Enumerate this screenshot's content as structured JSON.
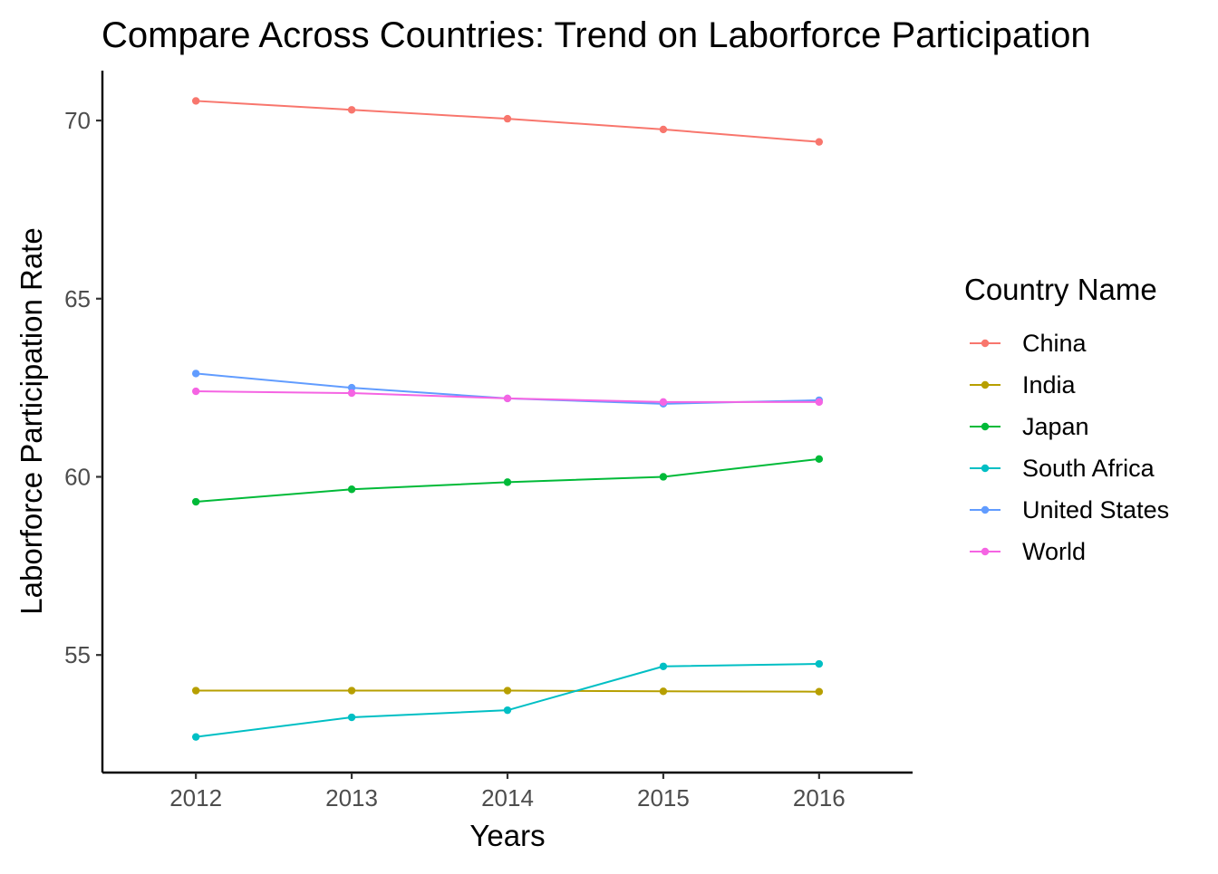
{
  "chart_data": {
    "type": "line",
    "title": "Compare Across Countries: Trend on Laborforce Participation",
    "xlabel": "Years",
    "ylabel": "Laborforce Participation Rate",
    "x": [
      2012,
      2013,
      2014,
      2015,
      2016
    ],
    "x_ticks": [
      "2012",
      "2013",
      "2014",
      "2015",
      "2016"
    ],
    "y_ticks": [
      "55",
      "60",
      "65",
      "70"
    ],
    "xlim": [
      2011.4,
      2016.6
    ],
    "ylim": [
      51.7,
      71.4
    ],
    "grid": false,
    "legend": {
      "title": "Country Name",
      "position": "right"
    },
    "series": [
      {
        "name": "China",
        "color": "#F8766D",
        "values": [
          70.55,
          70.3,
          70.05,
          69.75,
          69.4
        ]
      },
      {
        "name": "India",
        "color": "#B79F00",
        "values": [
          54.0,
          54.0,
          54.0,
          53.98,
          53.97
        ]
      },
      {
        "name": "Japan",
        "color": "#00BA38",
        "values": [
          59.3,
          59.65,
          59.85,
          60.0,
          60.5
        ]
      },
      {
        "name": "South Africa",
        "color": "#00BFC4",
        "values": [
          52.7,
          53.25,
          53.45,
          54.68,
          54.75
        ]
      },
      {
        "name": "United States",
        "color": "#619CFF",
        "values": [
          62.9,
          62.5,
          62.2,
          62.05,
          62.15
        ]
      },
      {
        "name": "World",
        "color": "#F564E3",
        "values": [
          62.4,
          62.35,
          62.2,
          62.1,
          62.1
        ]
      }
    ]
  }
}
